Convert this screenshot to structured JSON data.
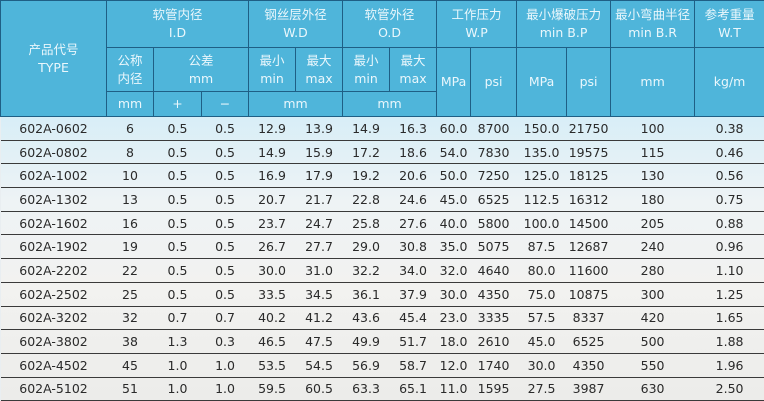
{
  "header": {
    "type": {
      "cn": "产品代号",
      "en": "TYPE"
    },
    "id": {
      "cn": "软管内径",
      "en": "I.D",
      "nominal_cn1": "公称",
      "nominal_cn2": "内径",
      "tol_cn": "公差",
      "tol_unit": "mm",
      "unit": "mm",
      "plus": "+",
      "minus": "−"
    },
    "wd": {
      "cn": "钢丝层外径",
      "en": "W.D",
      "min_cn": "最小",
      "min_en": "min",
      "max_cn": "最大",
      "max_en": "max",
      "unit": "mm"
    },
    "od": {
      "cn": "软管外径",
      "en": "O.D",
      "min_cn": "最小",
      "min_en": "min",
      "max_cn": "最大",
      "max_en": "max",
      "unit": "mm"
    },
    "wp": {
      "cn": "工作压力",
      "en": "W.P",
      "u1": "MPa",
      "u2": "psi"
    },
    "bp": {
      "cn": "最小爆破压力",
      "en": "min B.P",
      "u1": "MPa",
      "u2": "psi"
    },
    "br": {
      "cn": "最小弯曲半径",
      "en": "min B.R",
      "unit": "mm"
    },
    "wt": {
      "cn": "参考重量",
      "en": "W.T",
      "unit": "kg/m"
    }
  },
  "rows": [
    [
      "602A-0602",
      "6",
      "0.5",
      "0.5",
      "12.9",
      "13.9",
      "14.9",
      "16.3",
      "60.0",
      "8700",
      "150.0",
      "21750",
      "100",
      "0.38"
    ],
    [
      "602A-0802",
      "8",
      "0.5",
      "0.5",
      "14.9",
      "15.9",
      "17.2",
      "18.6",
      "54.0",
      "7830",
      "135.0",
      "19575",
      "115",
      "0.46"
    ],
    [
      "602A-1002",
      "10",
      "0.5",
      "0.5",
      "16.9",
      "17.9",
      "19.2",
      "20.6",
      "50.0",
      "7250",
      "125.0",
      "18125",
      "130",
      "0.56"
    ],
    [
      "602A-1302",
      "13",
      "0.5",
      "0.5",
      "20.7",
      "21.7",
      "22.8",
      "24.6",
      "45.0",
      "6525",
      "112.5",
      "16312",
      "180",
      "0.75"
    ],
    [
      "602A-1602",
      "16",
      "0.5",
      "0.5",
      "23.7",
      "24.7",
      "25.8",
      "27.6",
      "40.0",
      "5800",
      "100.0",
      "14500",
      "205",
      "0.88"
    ],
    [
      "602A-1902",
      "19",
      "0.5",
      "0.5",
      "26.7",
      "27.7",
      "29.0",
      "30.8",
      "35.0",
      "5075",
      "87.5",
      "12687",
      "240",
      "0.96"
    ],
    [
      "602A-2202",
      "22",
      "0.5",
      "0.5",
      "30.0",
      "31.0",
      "32.2",
      "34.0",
      "32.0",
      "4640",
      "80.0",
      "11600",
      "280",
      "1.10"
    ],
    [
      "602A-2502",
      "25",
      "0.5",
      "0.5",
      "33.5",
      "34.5",
      "36.1",
      "37.9",
      "30.0",
      "4350",
      "75.0",
      "10875",
      "300",
      "1.25"
    ],
    [
      "602A-3202",
      "32",
      "0.7",
      "0.7",
      "40.2",
      "41.2",
      "43.6",
      "45.4",
      "23.0",
      "3335",
      "57.5",
      "8337",
      "420",
      "1.65"
    ],
    [
      "602A-3802",
      "38",
      "1.3",
      "0.3",
      "46.5",
      "47.5",
      "49.9",
      "51.7",
      "18.0",
      "2610",
      "45.0",
      "6525",
      "500",
      "1.88"
    ],
    [
      "602A-4502",
      "45",
      "1.0",
      "1.0",
      "53.5",
      "54.5",
      "56.9",
      "58.7",
      "12.0",
      "1740",
      "30.0",
      "4350",
      "550",
      "1.96"
    ],
    [
      "602A-5102",
      "51",
      "1.0",
      "1.0",
      "59.5",
      "60.5",
      "63.3",
      "65.1",
      "11.0",
      "1595",
      "27.5",
      "3987",
      "630",
      "2.50"
    ]
  ]
}
